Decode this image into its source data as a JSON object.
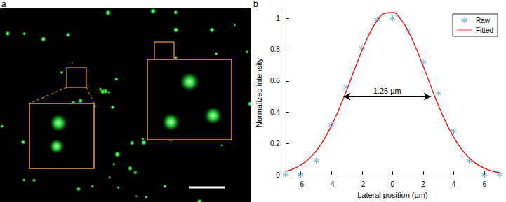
{
  "image_panel": {
    "label": "a"
  },
  "chart_data": {
    "type": "scatter",
    "panel_label": "b",
    "x_label": "Lateral position (µm)",
    "y_label": "Normalized intensity",
    "xlim": [
      -7,
      7
    ],
    "xticks": [
      -6,
      -4,
      -2,
      0,
      2,
      4,
      6
    ],
    "ylim": [
      0,
      1.05
    ],
    "yticks": [
      0,
      0.2,
      0.4,
      0.6,
      0.8,
      1
    ],
    "grid": false,
    "legend": "upper right",
    "series": [
      {
        "name": "Raw",
        "type": "scatter",
        "marker": "asterisk",
        "color": "#2a86d1",
        "x": [
          -7,
          -6,
          -5,
          -4,
          -3,
          -2,
          -1,
          0,
          1,
          2,
          3,
          4,
          5,
          6,
          7
        ],
        "values": [
          0,
          0,
          0.09,
          0.32,
          0.56,
          0.81,
          0.99,
          1.0,
          0.92,
          0.72,
          0.52,
          0.28,
          0.09,
          0,
          0
        ]
      },
      {
        "name": "Fitted",
        "type": "line",
        "line_style": "solid",
        "color": "#ff0000",
        "x": [
          -7,
          -6.5,
          -6,
          -5.5,
          -5,
          -4.5,
          -4,
          -3.5,
          -3,
          -2.5,
          -2,
          -1.5,
          -1,
          -0.5,
          0,
          0.5,
          1,
          1.5,
          2,
          2.5,
          3,
          3.5,
          4,
          4.5,
          5,
          5.5,
          6,
          6.5,
          7
        ],
        "values": [
          0.022,
          0.038,
          0.063,
          0.1,
          0.152,
          0.223,
          0.312,
          0.42,
          0.541,
          0.669,
          0.794,
          0.903,
          0.986,
          1.032,
          1.037,
          0.998,
          0.922,
          0.817,
          0.695,
          0.566,
          0.443,
          0.332,
          0.239,
          0.165,
          0.109,
          0.069,
          0.042,
          0.025,
          0.014
        ]
      }
    ],
    "annotations": [
      {
        "text": "1.25 µm",
        "x_start": -3.2,
        "x_end": 2.5,
        "y": 0.5
      }
    ]
  }
}
